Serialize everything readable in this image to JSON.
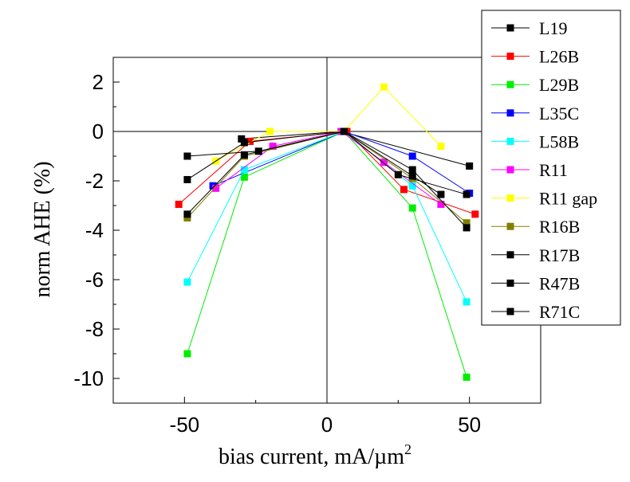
{
  "chart_data": {
    "type": "line",
    "xlabel": "bias current, mA/µm",
    "xlabel_sup": "2",
    "ylabel": "norm AHE (%)",
    "xlim": [
      -75,
      75
    ],
    "ylim": [
      -11,
      3
    ],
    "x_ticks": [
      -50,
      0,
      50
    ],
    "x_tick_labels": [
      "-50",
      "0",
      "50"
    ],
    "y_ticks": [
      2,
      0,
      -2,
      -4,
      -6,
      -8,
      -10
    ],
    "y_tick_labels": [
      "2",
      "0",
      "-2",
      "-4",
      "-6",
      "-8",
      "-10"
    ],
    "zero_lines": true,
    "grid": false,
    "legend_position": "right",
    "series": [
      {
        "name": "L19",
        "color": "#000000",
        "x": [
          -30,
          5,
          50
        ],
        "y": [
          -0.3,
          0,
          -1.4
        ]
      },
      {
        "name": "L26B",
        "color": "#ff0000",
        "x": [
          -52,
          -27,
          7,
          27,
          52
        ],
        "y": [
          -2.95,
          -0.4,
          0,
          -2.35,
          -3.35
        ]
      },
      {
        "name": "L29B",
        "color": "#00ee00",
        "x": [
          -49,
          -29,
          6,
          30,
          49
        ],
        "y": [
          -9,
          -1.85,
          0,
          -3.1,
          -9.95
        ]
      },
      {
        "name": "L35C",
        "color": "#0000ff",
        "x": [
          -40,
          6,
          30,
          50
        ],
        "y": [
          -2.2,
          0,
          -1,
          -2.5
        ]
      },
      {
        "name": "L58B",
        "color": "#00ffff",
        "x": [
          -49,
          -29,
          6,
          30,
          49
        ],
        "y": [
          -6.1,
          -1.55,
          0,
          -2.2,
          -6.9
        ]
      },
      {
        "name": "R11",
        "color": "#ff00ff",
        "x": [
          -39,
          -19,
          5,
          20,
          40
        ],
        "y": [
          -2.3,
          -0.6,
          0,
          -1.25,
          -2.95
        ]
      },
      {
        "name": "R11 gap",
        "color": "#ffff00",
        "x": [
          -39,
          -20,
          6,
          20,
          40
        ],
        "y": [
          -1.2,
          0,
          0,
          1.8,
          -0.6
        ]
      },
      {
        "name": "R16B",
        "color": "#808000",
        "x": [
          -49,
          -29,
          6,
          30,
          49
        ],
        "y": [
          -3.5,
          -1,
          0,
          -1.9,
          -3.7
        ]
      },
      {
        "name": "R17B",
        "color": "#000000",
        "x": [
          -49,
          -29,
          6,
          30,
          49
        ],
        "y": [
          -3.35,
          -0.95,
          0,
          -1.55,
          -3.9
        ]
      },
      {
        "name": "R47B",
        "color": "#000000",
        "x": [
          -49,
          -29,
          6,
          25,
          49
        ],
        "y": [
          -1.95,
          -0.45,
          0,
          -1.75,
          -2.55
        ]
      },
      {
        "name": "R71C",
        "color": "#000000",
        "x": [
          -49,
          -24,
          6,
          30,
          40
        ],
        "y": [
          -1,
          -0.8,
          0,
          -1.8,
          -2.55
        ]
      }
    ]
  }
}
